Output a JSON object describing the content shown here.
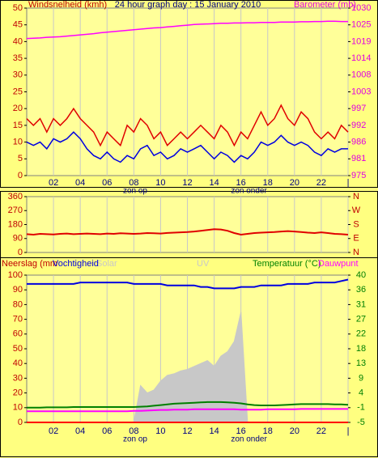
{
  "chart_data": [
    {
      "type": "line",
      "title": "24 hour graph day : 15 January 2010",
      "y_label": "Windsnelheid (kmh)",
      "y_color": "#c00000",
      "y2_label": "Barometer (mb)",
      "y2_color": "#e000e0",
      "grid": "x",
      "x": [
        0,
        0.5,
        1,
        1.5,
        2,
        2.5,
        3,
        3.5,
        4,
        4.5,
        5,
        5.5,
        6,
        6.5,
        7,
        7.5,
        8,
        8.5,
        9,
        9.5,
        10,
        10.5,
        11,
        11.5,
        12,
        12.5,
        13,
        13.5,
        14,
        14.5,
        15,
        15.5,
        16,
        16.5,
        17,
        17.5,
        18,
        18.5,
        19,
        19.5,
        20,
        20.5,
        21,
        21.5,
        22,
        22.5,
        23,
        23.5,
        24
      ],
      "xlim": [
        0,
        24
      ],
      "xticks": [
        {
          "value": 2,
          "label": "02"
        },
        {
          "value": 4,
          "label": "04"
        },
        {
          "value": 6,
          "label": "06"
        },
        {
          "value": 8,
          "label": "08"
        },
        {
          "value": 10,
          "label": "10"
        },
        {
          "value": 12,
          "label": "12"
        },
        {
          "value": 14,
          "label": "14"
        },
        {
          "value": 16,
          "label": "16"
        },
        {
          "value": 18,
          "label": "18"
        },
        {
          "value": 20,
          "label": "20"
        },
        {
          "value": 22,
          "label": "22"
        },
        {
          "value": 24,
          "label": "|"
        }
      ],
      "ylim": [
        0,
        50
      ],
      "yticks": [
        0,
        5,
        10,
        15,
        20,
        25,
        30,
        35,
        40,
        45,
        50
      ],
      "y2lim": [
        975,
        1030
      ],
      "y2ticks": [
        975,
        {
          "value": 980.5,
          "label": "981"
        },
        986,
        {
          "value": 991.5,
          "label": "992"
        },
        997,
        {
          "value": 1002.5,
          "label": "1003"
        },
        1008,
        {
          "value": 1013.5,
          "label": "1014"
        },
        1019,
        {
          "value": 1024.5,
          "label": "1025"
        },
        1030
      ],
      "annotations": [
        {
          "text": "zon op",
          "x": 8.1
        },
        {
          "text": "zon onder",
          "x": 16.6
        }
      ],
      "series": [
        {
          "color": "#e00000",
          "values": [
            17,
            15,
            17,
            13,
            17,
            15,
            17,
            20,
            17,
            15,
            13,
            9,
            13,
            11,
            9,
            15,
            13,
            17,
            15,
            11,
            13,
            9,
            11,
            13,
            11,
            13,
            15,
            13,
            11,
            15,
            13,
            9,
            13,
            11,
            15,
            19,
            15,
            17,
            21,
            17,
            15,
            19,
            17,
            13,
            11,
            13,
            11,
            15,
            13
          ]
        },
        {
          "color": "#0000e0",
          "values": [
            10,
            9,
            10,
            8,
            11,
            10,
            11,
            13,
            11,
            8,
            6,
            5,
            7,
            5,
            4,
            6,
            5,
            8,
            9,
            6,
            7,
            5,
            6,
            8,
            7,
            8,
            9,
            7,
            5,
            7,
            6,
            4,
            6,
            5,
            7,
            10,
            9,
            10,
            12,
            10,
            9,
            10,
            9,
            7,
            6,
            8,
            7,
            8,
            8
          ]
        },
        {
          "color": "#ff00ff",
          "axis": "y2",
          "values": [
            1020.0,
            1020.1,
            1020.2,
            1020.4,
            1020.5,
            1020.6,
            1020.8,
            1021.0,
            1021.2,
            1021.4,
            1021.6,
            1021.9,
            1022.1,
            1022.3,
            1022.5,
            1022.7,
            1022.9,
            1023.1,
            1023.3,
            1023.5,
            1023.6,
            1023.8,
            1024.0,
            1024.2,
            1024.4,
            1024.6,
            1024.7,
            1024.8,
            1024.9,
            1025.0,
            1025.0,
            1025.1,
            1025.1,
            1025.2,
            1025.2,
            1025.3,
            1025.3,
            1025.3,
            1025.4,
            1025.4,
            1025.4,
            1025.5,
            1025.5,
            1025.6,
            1025.6,
            1025.7,
            1025.7,
            1025.6,
            1025.6
          ]
        }
      ]
    },
    {
      "type": "line",
      "y_color": "#c00000",
      "y2_color": "#c00000",
      "grid": "x",
      "x": [
        0,
        0.5,
        1,
        1.5,
        2,
        2.5,
        3,
        3.5,
        4,
        4.5,
        5,
        5.5,
        6,
        6.5,
        7,
        7.5,
        8,
        8.5,
        9,
        9.5,
        10,
        10.5,
        11,
        11.5,
        12,
        12.5,
        13,
        13.5,
        14,
        14.5,
        15,
        15.5,
        16,
        16.5,
        17,
        17.5,
        18,
        18.5,
        19,
        19.5,
        20,
        20.5,
        21,
        21.5,
        22,
        22.5,
        23,
        23.5,
        24
      ],
      "xlim": [
        0,
        24
      ],
      "ylim": [
        0,
        360
      ],
      "yticks": [
        0,
        90,
        180,
        270,
        360
      ],
      "y2lim": [
        0,
        360
      ],
      "y2ticks": [
        {
          "value": 360,
          "label": "N"
        },
        {
          "value": 270,
          "label": "W"
        },
        {
          "value": 180,
          "label": "S"
        },
        {
          "value": 90,
          "label": "E"
        },
        {
          "value": 0,
          "label": "N"
        }
      ],
      "series": [
        {
          "color": "#e00000",
          "values": [
            118,
            115,
            120,
            118,
            116,
            120,
            122,
            118,
            120,
            122,
            120,
            118,
            122,
            120,
            124,
            122,
            120,
            122,
            125,
            124,
            122,
            126,
            128,
            130,
            132,
            135,
            140,
            145,
            150,
            148,
            140,
            125,
            115,
            120,
            125,
            128,
            130,
            132,
            135,
            138,
            135,
            132,
            128,
            125,
            130,
            125,
            120,
            118,
            115
          ]
        }
      ]
    },
    {
      "type": "line",
      "y_label": "Neerslag (mm",
      "y_color": "#c00000",
      "y2_color": "#008000",
      "uv_label": "UV",
      "grid": "x",
      "x": [
        0,
        0.5,
        1,
        1.5,
        2,
        2.5,
        3,
        3.5,
        4,
        4.5,
        5,
        5.5,
        6,
        6.5,
        7,
        7.5,
        8,
        8.5,
        9,
        9.5,
        10,
        10.5,
        11,
        11.5,
        12,
        12.5,
        13,
        13.5,
        14,
        14.5,
        15,
        15.5,
        16,
        16.5,
        17,
        17.5,
        18,
        18.5,
        19,
        19.5,
        20,
        20.5,
        21,
        21.5,
        22,
        22.5,
        23,
        23.5,
        24
      ],
      "xlim": [
        0,
        24
      ],
      "xticks": [
        {
          "value": 2,
          "label": "02"
        },
        {
          "value": 4,
          "label": "04"
        },
        {
          "value": 6,
          "label": "06"
        },
        {
          "value": 8,
          "label": "08"
        },
        {
          "value": 10,
          "label": "10"
        },
        {
          "value": 12,
          "label": "12"
        },
        {
          "value": 14,
          "label": "14"
        },
        {
          "value": 16,
          "label": "16"
        },
        {
          "value": 18,
          "label": "18"
        },
        {
          "value": 20,
          "label": "20"
        },
        {
          "value": 22,
          "label": "22"
        },
        {
          "value": 24,
          "label": "|"
        }
      ],
      "ylim": [
        0,
        100
      ],
      "yticks": [
        0,
        10,
        20,
        30,
        40,
        50,
        60,
        70,
        80,
        90,
        100
      ],
      "y2lim": [
        -5,
        40
      ],
      "y2ticks": [
        -5,
        {
          "value": -0.5,
          "label": "-1"
        },
        4,
        {
          "value": 8.5,
          "label": "9"
        },
        13,
        {
          "value": 17.5,
          "label": "18"
        },
        22,
        {
          "value": 26.5,
          "label": "27"
        },
        31,
        {
          "value": 35.5,
          "label": "36"
        },
        40
      ],
      "annotations": [
        {
          "text": "zon op",
          "x": 8.1
        },
        {
          "text": "zon onder",
          "x": 16.6
        }
      ],
      "series": [
        {
          "name": "Solar",
          "kind": "area",
          "color": "#c8c8c8",
          "values": [
            0,
            0,
            0,
            0,
            0,
            0,
            0,
            0,
            0,
            0,
            0,
            0,
            0,
            0,
            0,
            0,
            0,
            25,
            20,
            22,
            28,
            32,
            33,
            35,
            36,
            38,
            40,
            42,
            38,
            45,
            48,
            55,
            75,
            0,
            0,
            0,
            0,
            0,
            0,
            0,
            0,
            0,
            0,
            0,
            0,
            0,
            0,
            0,
            0
          ]
        },
        {
          "name": "Vochtigheid",
          "color": "#0000e0",
          "values": [
            94,
            94,
            94,
            94,
            94,
            94,
            94,
            94,
            95,
            95,
            95,
            95,
            95,
            95,
            95,
            95,
            94,
            94,
            94,
            94,
            94,
            93,
            93,
            93,
            93,
            93,
            92,
            92,
            91,
            91,
            91,
            91,
            92,
            92,
            92,
            93,
            93,
            93,
            93,
            94,
            94,
            94,
            94,
            95,
            95,
            95,
            95,
            96,
            97
          ]
        },
        {
          "color": "#ff0000",
          "values": [
            0,
            0,
            0,
            0,
            0,
            0,
            0,
            0,
            0,
            0,
            0,
            0,
            0,
            0,
            0,
            0,
            0,
            0,
            0,
            0,
            0,
            0,
            0,
            0,
            0,
            0,
            0,
            0,
            0,
            0,
            0,
            0,
            0,
            0,
            0,
            0,
            0,
            0,
            0,
            0,
            0,
            0,
            0,
            0,
            0,
            0,
            0,
            0,
            0
          ]
        },
        {
          "name": "Temperatuur (°C)",
          "axis": "y2",
          "color": "#008000",
          "values": [
            -0.5,
            -0.5,
            -0.5,
            -0.4,
            -0.4,
            -0.4,
            -0.4,
            -0.3,
            -0.3,
            -0.3,
            -0.3,
            -0.3,
            -0.3,
            -0.3,
            -0.3,
            -0.3,
            -0.3,
            -0.2,
            -0.1,
            0.1,
            0.3,
            0.5,
            0.7,
            0.8,
            0.9,
            1.0,
            1.1,
            1.2,
            1.2,
            1.2,
            1.1,
            1.0,
            0.8,
            0.5,
            0.3,
            0.2,
            0.2,
            0.2,
            0.3,
            0.4,
            0.5,
            0.6,
            0.6,
            0.6,
            0.6,
            0.6,
            0.5,
            0.5,
            0.4
          ]
        },
        {
          "name": "Dauwpunt",
          "axis": "y2",
          "color": "#ff00ff",
          "values": [
            -1.6,
            -1.6,
            -1.6,
            -1.6,
            -1.6,
            -1.6,
            -1.6,
            -1.6,
            -1.6,
            -1.6,
            -1.6,
            -1.6,
            -1.6,
            -1.6,
            -1.6,
            -1.6,
            -1.5,
            -1.5,
            -1.4,
            -1.3,
            -1.2,
            -1.2,
            -1.1,
            -1.1,
            -1.1,
            -1.0,
            -1.0,
            -1.0,
            -1.0,
            -1.0,
            -1.0,
            -1.0,
            -1.1,
            -1.1,
            -1.1,
            -1.1,
            -1.0,
            -1.0,
            -1.0,
            -1.0,
            -1.0,
            -0.9,
            -0.9,
            -0.9,
            -0.9,
            -0.9,
            -0.9,
            -0.9,
            -0.9
          ]
        }
      ]
    }
  ]
}
